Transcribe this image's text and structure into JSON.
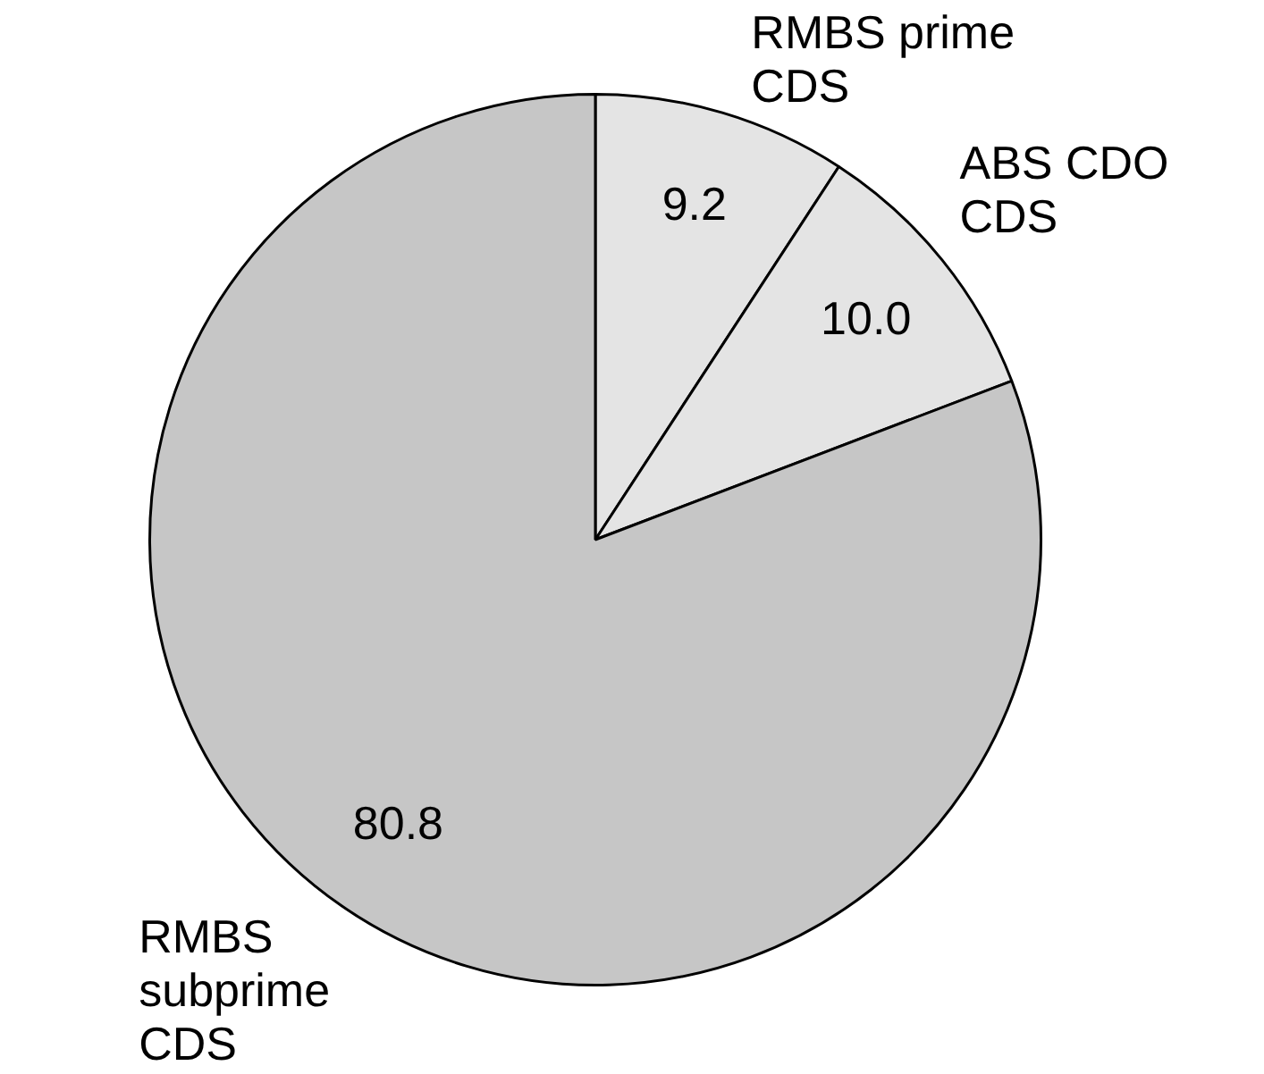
{
  "chart_data": {
    "type": "pie",
    "categories": [
      "RMBS prime CDS",
      "ABS CDO CDS",
      "RMBS subprime CDS"
    ],
    "values": [
      9.2,
      10.0,
      80.8
    ],
    "colors": [
      "#e4e4e4",
      "#e4e4e4",
      "#c6c6c6"
    ],
    "value_labels": [
      "9.2",
      "10.0",
      "80.8"
    ],
    "legend": false
  }
}
